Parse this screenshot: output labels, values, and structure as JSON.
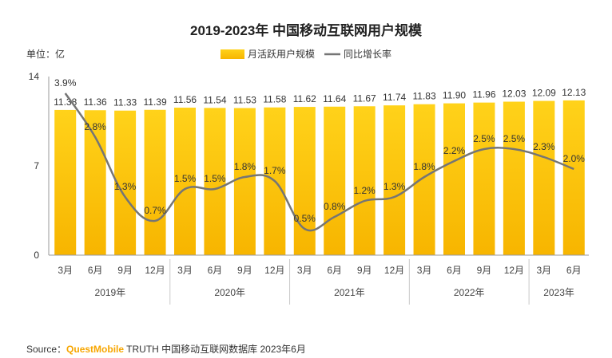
{
  "title": "2019-2023年 中国移动互联网用户规模",
  "unit_label": "单位：亿",
  "legend": {
    "bar_label": "月活跃用户规模",
    "line_label": "同比增长率"
  },
  "colors": {
    "bar_top": "#ffd21a",
    "bar_bottom": "#f7b500",
    "line": "#757575",
    "axis": "#999999",
    "divider": "#c8c8c8",
    "source_brand": "#f7a600"
  },
  "source": {
    "prefix": "Source：",
    "brand": "QuestMobile",
    "suffix": " TRUTH 中国移动互联网数据库 2023年6月"
  },
  "chart_data": {
    "type": "bar",
    "title": "2019-2023年 中国移动互联网用户规模",
    "ylabel": "单位：亿",
    "ylim": [
      0,
      14
    ],
    "yticks": [
      "0",
      "7",
      "14"
    ],
    "categories": [
      "3月",
      "6月",
      "9月",
      "12月",
      "3月",
      "6月",
      "9月",
      "12月",
      "3月",
      "6月",
      "9月",
      "12月",
      "3月",
      "6月",
      "9月",
      "12月",
      "3月",
      "6月"
    ],
    "groups": [
      {
        "label": "2019年",
        "start": 0,
        "end": 3
      },
      {
        "label": "2020年",
        "start": 4,
        "end": 7
      },
      {
        "label": "2021年",
        "start": 8,
        "end": 11
      },
      {
        "label": "2022年",
        "start": 12,
        "end": 15
      },
      {
        "label": "2023年",
        "start": 16,
        "end": 17
      }
    ],
    "series": [
      {
        "name": "月活跃用户规模",
        "type": "bar",
        "values": [
          11.38,
          11.36,
          11.33,
          11.39,
          11.56,
          11.54,
          11.53,
          11.58,
          11.62,
          11.64,
          11.67,
          11.74,
          11.83,
          11.9,
          11.96,
          12.03,
          12.09,
          12.13
        ],
        "labels": [
          "11.38",
          "11.36",
          "11.33",
          "11.39",
          "11.56",
          "11.54",
          "11.53",
          "11.58",
          "11.62",
          "11.64",
          "11.67",
          "11.74",
          "11.83",
          "11.90",
          "11.96",
          "12.03",
          "12.09",
          "12.13"
        ]
      },
      {
        "name": "同比增长率",
        "type": "line",
        "values": [
          3.9,
          2.8,
          1.3,
          0.7,
          1.5,
          1.5,
          1.8,
          1.7,
          0.5,
          0.8,
          1.2,
          1.3,
          1.8,
          2.2,
          2.5,
          2.5,
          2.3,
          2.0
        ],
        "labels": [
          "3.9%",
          "2.8%",
          "1.3%",
          "0.7%",
          "1.5%",
          "1.5%",
          "1.8%",
          "1.7%",
          "0.5%",
          "0.8%",
          "1.2%",
          "1.3%",
          "1.8%",
          "2.2%",
          "2.5%",
          "2.5%",
          "2.3%",
          "2.0%"
        ]
      }
    ],
    "grid": false,
    "legend_position": "top"
  }
}
